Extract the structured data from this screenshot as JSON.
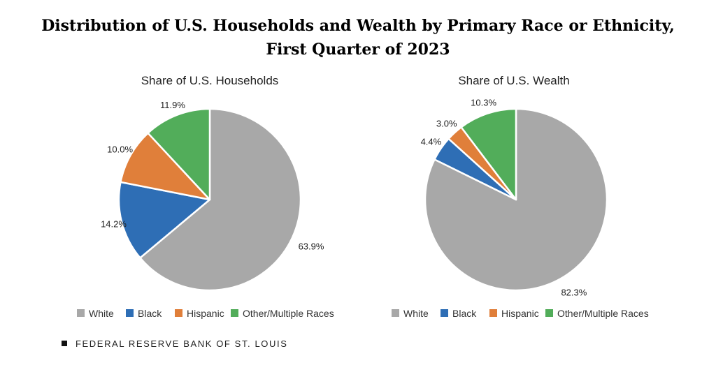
{
  "title": "Distribution of U.S. Households and Wealth by Primary Race or Ethnicity, First Quarter of 2023",
  "source": "FEDERAL RESERVE BANK OF ST. LOUIS",
  "colors": {
    "White": "#a8a8a8",
    "Black": "#2e6eb5",
    "Hispanic": "#e07f3a",
    "Other/Multiple Races": "#52ad5a"
  },
  "chart_data": [
    {
      "type": "pie",
      "title": "Share of U.S. Households",
      "slices": [
        {
          "label": "White",
          "value": 63.9,
          "display": "63.9%"
        },
        {
          "label": "Black",
          "value": 14.2,
          "display": "14.2%"
        },
        {
          "label": "Hispanic",
          "value": 10.0,
          "display": "10.0%"
        },
        {
          "label": "Other/Multiple Races",
          "value": 11.9,
          "display": "11.9%"
        }
      ],
      "legend": [
        "White",
        "Black",
        "Hispanic",
        "Other/Multiple Races"
      ],
      "legend_position": "bottom"
    },
    {
      "type": "pie",
      "title": "Share of U.S. Wealth",
      "slices": [
        {
          "label": "White",
          "value": 82.3,
          "display": "82.3%"
        },
        {
          "label": "Black",
          "value": 4.4,
          "display": "4.4%"
        },
        {
          "label": "Hispanic",
          "value": 3.0,
          "display": "3.0%"
        },
        {
          "label": "Other/Multiple Races",
          "value": 10.3,
          "display": "10.3%"
        }
      ],
      "legend": [
        "White",
        "Black",
        "Hispanic",
        "Other/Multiple Races"
      ],
      "legend_position": "bottom"
    }
  ]
}
